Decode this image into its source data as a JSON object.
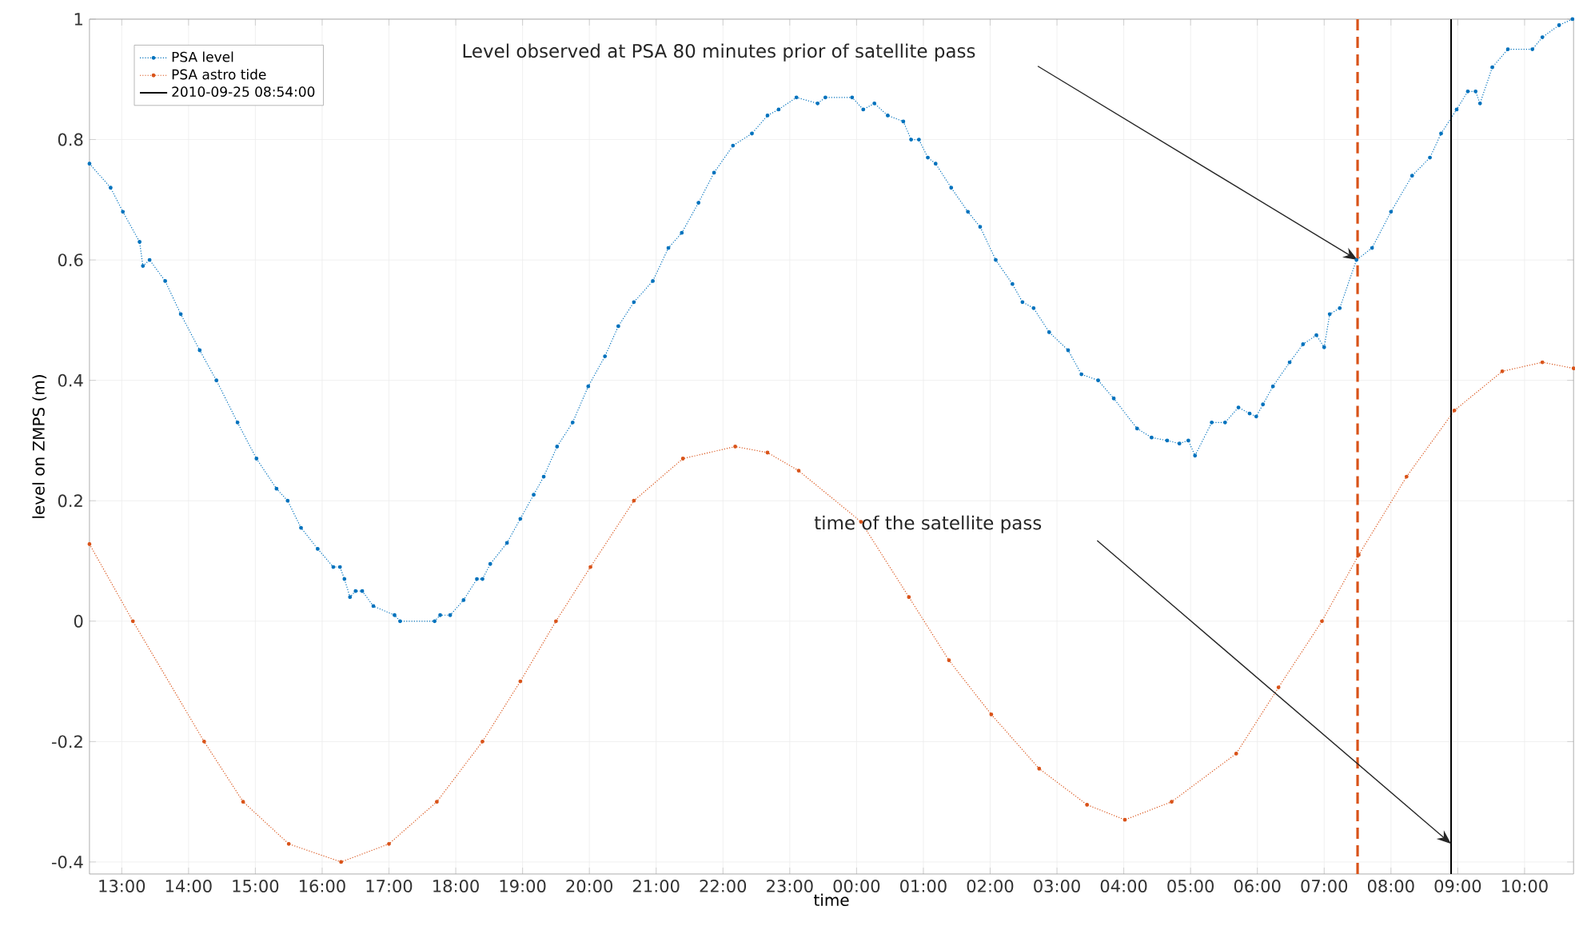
{
  "chart_data": {
    "type": "line",
    "xlabel": "time",
    "ylabel": "level on ZMPS (m)",
    "xlim": [
      "2010-09-24T12:31",
      "2010-09-25T10:44"
    ],
    "ylim": [
      -0.42,
      1
    ],
    "xticks": [
      {
        "value": "2010-09-24T13:00",
        "label": "13:00"
      },
      {
        "value": "2010-09-24T14:00",
        "label": "14:00"
      },
      {
        "value": "2010-09-24T15:00",
        "label": "15:00"
      },
      {
        "value": "2010-09-24T16:00",
        "label": "16:00"
      },
      {
        "value": "2010-09-24T17:00",
        "label": "17:00"
      },
      {
        "value": "2010-09-24T18:00",
        "label": "18:00"
      },
      {
        "value": "2010-09-24T19:00",
        "label": "19:00"
      },
      {
        "value": "2010-09-24T20:00",
        "label": "20:00"
      },
      {
        "value": "2010-09-24T21:00",
        "label": "21:00"
      },
      {
        "value": "2010-09-24T22:00",
        "label": "22:00"
      },
      {
        "value": "2010-09-24T23:00",
        "label": "23:00"
      },
      {
        "value": "2010-09-25T00:00",
        "label": "00:00"
      },
      {
        "value": "2010-09-25T01:00",
        "label": "01:00"
      },
      {
        "value": "2010-09-25T02:00",
        "label": "02:00"
      },
      {
        "value": "2010-09-25T03:00",
        "label": "03:00"
      },
      {
        "value": "2010-09-25T04:00",
        "label": "04:00"
      },
      {
        "value": "2010-09-25T05:00",
        "label": "05:00"
      },
      {
        "value": "2010-09-25T06:00",
        "label": "06:00"
      },
      {
        "value": "2010-09-25T07:00",
        "label": "07:00"
      },
      {
        "value": "2010-09-25T08:00",
        "label": "08:00"
      },
      {
        "value": "2010-09-25T09:00",
        "label": "09:00"
      },
      {
        "value": "2010-09-25T10:00",
        "label": "10:00"
      }
    ],
    "yticks": [
      -0.4,
      -0.2,
      0,
      0.2,
      0.4,
      0.6,
      0.8,
      1
    ],
    "grid": true,
    "legend": "top left",
    "marker": "circle",
    "line_style": "dotted",
    "series": [
      {
        "name": "PSA level",
        "color": "#0072bd",
        "x": [
          "2010-09-24T12:31",
          "2010-09-24T12:50",
          "2010-09-24T13:01",
          "2010-09-24T13:16",
          "2010-09-24T13:19",
          "2010-09-24T13:25",
          "2010-09-24T13:39",
          "2010-09-24T13:53",
          "2010-09-24T14:10",
          "2010-09-24T14:25",
          "2010-09-24T14:44",
          "2010-09-24T15:01",
          "2010-09-24T15:19",
          "2010-09-24T15:29",
          "2010-09-24T15:41",
          "2010-09-24T15:56",
          "2010-09-24T16:10",
          "2010-09-24T16:16",
          "2010-09-24T16:20",
          "2010-09-24T16:25",
          "2010-09-24T16:30",
          "2010-09-24T16:36",
          "2010-09-24T16:46",
          "2010-09-24T17:05",
          "2010-09-24T17:10",
          "2010-09-24T17:41",
          "2010-09-24T17:46",
          "2010-09-24T17:55",
          "2010-09-24T18:07",
          "2010-09-24T18:19",
          "2010-09-24T18:24",
          "2010-09-24T18:31",
          "2010-09-24T18:46",
          "2010-09-24T18:58",
          "2010-09-24T19:10",
          "2010-09-24T19:19",
          "2010-09-24T19:31",
          "2010-09-24T19:45",
          "2010-09-24T19:59",
          "2010-09-24T20:14",
          "2010-09-24T20:26",
          "2010-09-24T20:40",
          "2010-09-24T20:57",
          "2010-09-24T21:11",
          "2010-09-24T21:23",
          "2010-09-24T21:38",
          "2010-09-24T21:52",
          "2010-09-24T22:09",
          "2010-09-24T22:26",
          "2010-09-24T22:40",
          "2010-09-24T22:50",
          "2010-09-24T23:06",
          "2010-09-24T23:25",
          "2010-09-24T23:32",
          "2010-09-24T23:56",
          "2010-09-25T00:06",
          "2010-09-25T00:16",
          "2010-09-25T00:28",
          "2010-09-25T00:42",
          "2010-09-25T00:49",
          "2010-09-25T00:56",
          "2010-09-25T01:04",
          "2010-09-25T01:11",
          "2010-09-25T01:25",
          "2010-09-25T01:40",
          "2010-09-25T01:51",
          "2010-09-25T02:05",
          "2010-09-25T02:20",
          "2010-09-25T02:29",
          "2010-09-25T02:39",
          "2010-09-25T02:53",
          "2010-09-25T03:10",
          "2010-09-25T03:22",
          "2010-09-25T03:37",
          "2010-09-25T03:51",
          "2010-09-25T04:12",
          "2010-09-25T04:25",
          "2010-09-25T04:39",
          "2010-09-25T04:50",
          "2010-09-25T04:58",
          "2010-09-25T05:04",
          "2010-09-25T05:19",
          "2010-09-25T05:31",
          "2010-09-25T05:43",
          "2010-09-25T05:53",
          "2010-09-25T05:59",
          "2010-09-25T06:05",
          "2010-09-25T06:14",
          "2010-09-25T06:29",
          "2010-09-25T06:41",
          "2010-09-25T06:53",
          "2010-09-25T07:00",
          "2010-09-25T07:05",
          "2010-09-25T07:14",
          "2010-09-25T07:29",
          "2010-09-25T07:43",
          "2010-09-25T08:00",
          "2010-09-25T08:19",
          "2010-09-25T08:35",
          "2010-09-25T08:45",
          "2010-09-25T08:59",
          "2010-09-25T09:09",
          "2010-09-25T09:16",
          "2010-09-25T09:20",
          "2010-09-25T09:31",
          "2010-09-25T09:45",
          "2010-09-25T10:07",
          "2010-09-25T10:16",
          "2010-09-25T10:31",
          "2010-09-25T10:43"
        ],
        "values": [
          0.76,
          0.72,
          0.68,
          0.63,
          0.59,
          0.6,
          0.565,
          0.51,
          0.45,
          0.4,
          0.33,
          0.27,
          0.22,
          0.2,
          0.155,
          0.12,
          0.09,
          0.09,
          0.07,
          0.04,
          0.05,
          0.05,
          0.025,
          0.01,
          0,
          0,
          0.01,
          0.01,
          0.035,
          0.07,
          0.07,
          0.095,
          0.13,
          0.17,
          0.21,
          0.24,
          0.29,
          0.33,
          0.39,
          0.44,
          0.49,
          0.53,
          0.565,
          0.62,
          0.645,
          0.695,
          0.745,
          0.79,
          0.81,
          0.84,
          0.85,
          0.87,
          0.86,
          0.87,
          0.87,
          0.85,
          0.86,
          0.84,
          0.83,
          0.8,
          0.8,
          0.77,
          0.76,
          0.72,
          0.68,
          0.655,
          0.6,
          0.56,
          0.53,
          0.52,
          0.48,
          0.45,
          0.41,
          0.4,
          0.37,
          0.32,
          0.305,
          0.3,
          0.295,
          0.3,
          0.275,
          0.33,
          0.33,
          0.355,
          0.345,
          0.34,
          0.36,
          0.39,
          0.43,
          0.46,
          0.475,
          0.455,
          0.51,
          0.52,
          0.6,
          0.62,
          0.68,
          0.74,
          0.77,
          0.81,
          0.85,
          0.88,
          0.88,
          0.86,
          0.92,
          0.95,
          0.95,
          0.97,
          0.99,
          1.0
        ]
      },
      {
        "name": "PSA astro tide",
        "color": "#d95319",
        "x": [
          "2010-09-24T12:31",
          "2010-09-24T13:10",
          "2010-09-24T14:14",
          "2010-09-24T14:49",
          "2010-09-24T15:30",
          "2010-09-24T16:17",
          "2010-09-24T17:00",
          "2010-09-24T17:43",
          "2010-09-24T18:24",
          "2010-09-24T18:58",
          "2010-09-24T19:30",
          "2010-09-24T20:01",
          "2010-09-24T20:40",
          "2010-09-24T21:24",
          "2010-09-24T22:11",
          "2010-09-24T22:40",
          "2010-09-24T23:08",
          "2010-09-25T00:04",
          "2010-09-25T00:47",
          "2010-09-25T01:23",
          "2010-09-25T02:01",
          "2010-09-25T02:44",
          "2010-09-25T03:27",
          "2010-09-25T04:01",
          "2010-09-25T04:43",
          "2010-09-25T05:41",
          "2010-09-25T06:19",
          "2010-09-25T06:58",
          "2010-09-25T07:31",
          "2010-09-25T08:14",
          "2010-09-25T08:57",
          "2010-09-25T09:40",
          "2010-09-25T10:16",
          "2010-09-25T10:44"
        ],
        "values": [
          0.128,
          0,
          -0.2,
          -0.3,
          -0.37,
          -0.4,
          -0.37,
          -0.3,
          -0.2,
          -0.1,
          0,
          0.09,
          0.2,
          0.27,
          0.29,
          0.28,
          0.25,
          0.165,
          0.04,
          -0.065,
          -0.155,
          -0.245,
          -0.305,
          -0.33,
          -0.3,
          -0.22,
          -0.11,
          0,
          0.11,
          0.24,
          0.35,
          0.415,
          0.43,
          0.42
        ]
      },
      {
        "name": "2010-09-25 08:54:00",
        "type": "line",
        "color": "#000000",
        "marker": "none",
        "line_style": "solid",
        "x": [
          "2010-09-25T08:54",
          "2010-09-25T08:54"
        ],
        "values": [
          -0.42,
          1
        ]
      }
    ],
    "ref_lines": [
      {
        "axis": "x",
        "value": "2010-09-25T07:30",
        "color": "#d95319",
        "line_style": "dashed"
      }
    ],
    "annotations": [
      "Level observed at PSA 80 minutes prior of satellite pass",
      "time of the satellite pass"
    ]
  }
}
